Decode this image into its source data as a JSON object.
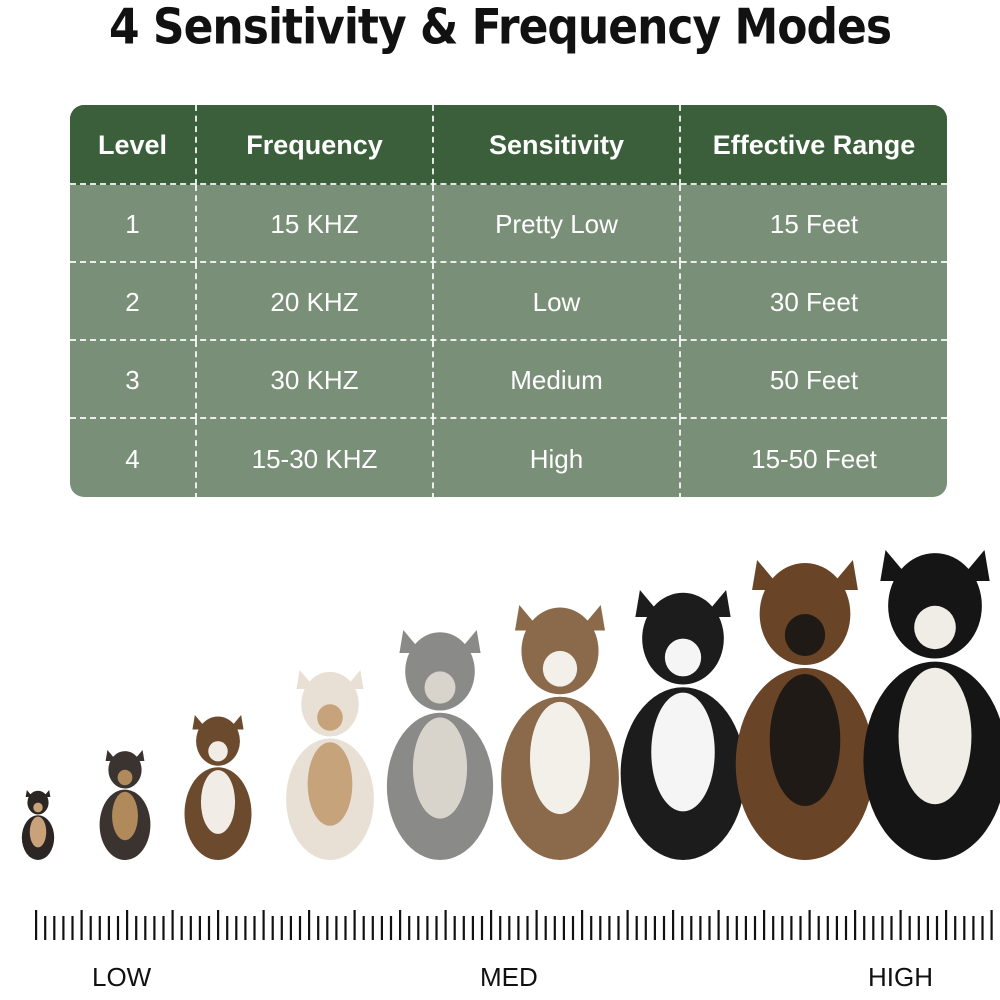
{
  "title": "4 Sensitivity & Frequency Modes",
  "table": {
    "headers": [
      "Level",
      "Frequency",
      "Sensitivity",
      "Effective Range"
    ],
    "rows": [
      [
        "1",
        "15 KHZ",
        "Pretty Low",
        "15 Feet"
      ],
      [
        "2",
        "20 KHZ",
        "Low",
        "30 Feet"
      ],
      [
        "3",
        "30 KHZ",
        "Medium",
        "50 Feet"
      ],
      [
        "4",
        "15-30 KHZ",
        "High",
        "15-50 Feet"
      ]
    ],
    "header_color": "#3b5f3b",
    "row_color": "#7a8f78"
  },
  "dogs": {
    "count": 9,
    "description_icon": "dog-size-lineup"
  },
  "scale": {
    "labels": [
      "LOW",
      "MED",
      "HIGH"
    ]
  }
}
